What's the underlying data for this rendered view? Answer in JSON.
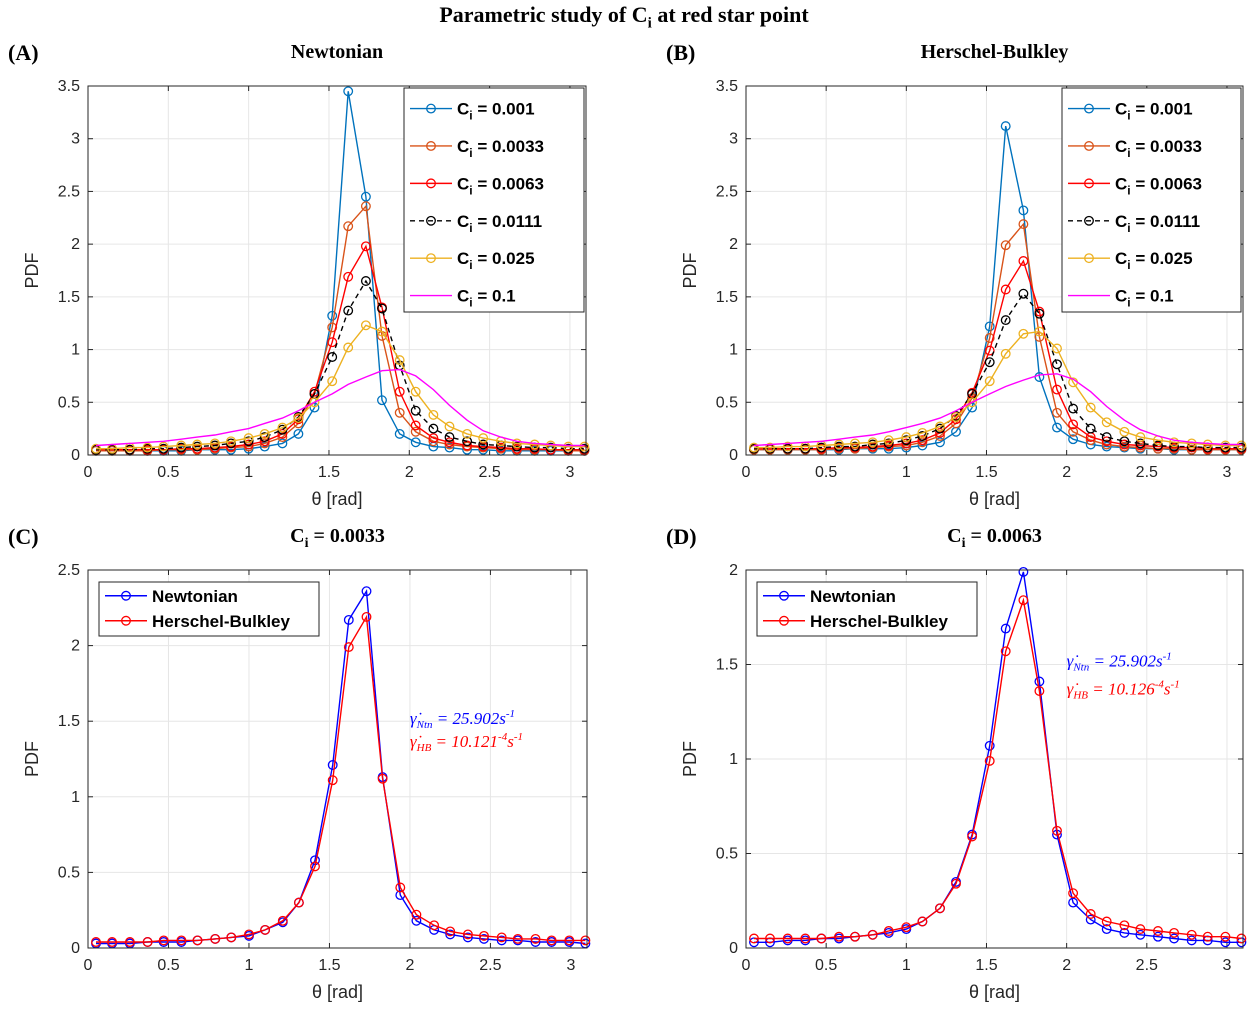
{
  "figure": {
    "title": "Parametric study of C",
    "title_sub": "i",
    "title_tail": " at red star point"
  },
  "chart_data": [
    {
      "type": "line",
      "panel_label": "(A)",
      "title": "Newtonian",
      "xlabel": "θ [rad]",
      "ylabel": "PDF",
      "xlim": [
        0,
        3.1
      ],
      "ylim": [
        0,
        3.5
      ],
      "xticks": [
        "0",
        "0.5",
        "1",
        "1.5",
        "2",
        "2.5",
        "3"
      ],
      "yticks": [
        "0",
        "0.5",
        "1",
        "1.5",
        "2",
        "2.5",
        "3",
        "3.5"
      ],
      "grid": true,
      "legend": "top-right",
      "x": [
        0.05,
        0.15,
        0.26,
        0.37,
        0.47,
        0.58,
        0.68,
        0.79,
        0.89,
        1.0,
        1.1,
        1.21,
        1.31,
        1.41,
        1.52,
        1.62,
        1.73,
        1.83,
        1.94,
        2.04,
        2.15,
        2.25,
        2.36,
        2.46,
        2.57,
        2.67,
        2.78,
        2.88,
        2.99,
        3.09
      ],
      "series": [
        {
          "name": "C_i = 0.001",
          "legend_main": "C",
          "legend_sub": "i",
          "legend_tail": " = 0.001",
          "color": "#0072BD",
          "dash": false,
          "markers": true,
          "values": [
            0.04,
            0.04,
            0.04,
            0.04,
            0.04,
            0.04,
            0.05,
            0.05,
            0.05,
            0.06,
            0.08,
            0.11,
            0.2,
            0.45,
            1.32,
            3.45,
            2.45,
            0.52,
            0.2,
            0.12,
            0.08,
            0.07,
            0.05,
            0.05,
            0.04,
            0.04,
            0.04,
            0.04,
            0.04,
            0.04
          ]
        },
        {
          "name": "C_i = 0.0033",
          "legend_main": "C",
          "legend_sub": "i",
          "legend_tail": " = 0.0033",
          "color": "#D95319",
          "dash": false,
          "markers": true,
          "values": [
            0.04,
            0.04,
            0.04,
            0.04,
            0.05,
            0.05,
            0.05,
            0.06,
            0.07,
            0.08,
            0.11,
            0.17,
            0.3,
            0.58,
            1.21,
            2.17,
            2.36,
            1.13,
            0.4,
            0.22,
            0.13,
            0.1,
            0.08,
            0.07,
            0.06,
            0.05,
            0.05,
            0.05,
            0.04,
            0.04
          ]
        },
        {
          "name": "C_i = 0.0063",
          "legend_main": "C",
          "legend_sub": "i",
          "legend_tail": " = 0.0063",
          "color": "#FF0000",
          "dash": false,
          "markers": true,
          "values": [
            0.05,
            0.05,
            0.05,
            0.05,
            0.05,
            0.06,
            0.06,
            0.07,
            0.08,
            0.1,
            0.13,
            0.2,
            0.34,
            0.6,
            1.07,
            1.69,
            1.98,
            1.4,
            0.6,
            0.28,
            0.16,
            0.12,
            0.09,
            0.08,
            0.07,
            0.06,
            0.06,
            0.05,
            0.05,
            0.05
          ]
        },
        {
          "name": "C_i = 0.0111",
          "legend_main": "C",
          "legend_sub": "i",
          "legend_tail": " = 0.0111",
          "color": "#000000",
          "dash": true,
          "markers": true,
          "values": [
            0.05,
            0.05,
            0.05,
            0.06,
            0.06,
            0.07,
            0.08,
            0.09,
            0.11,
            0.13,
            0.17,
            0.24,
            0.36,
            0.58,
            0.93,
            1.37,
            1.65,
            1.39,
            0.85,
            0.42,
            0.25,
            0.17,
            0.13,
            0.1,
            0.09,
            0.08,
            0.07,
            0.07,
            0.06,
            0.06
          ]
        },
        {
          "name": "C_i = 0.025",
          "legend_main": "C",
          "legend_sub": "i",
          "legend_tail": " = 0.025",
          "color": "#EDB120",
          "dash": false,
          "markers": true,
          "values": [
            0.06,
            0.06,
            0.07,
            0.07,
            0.08,
            0.09,
            0.1,
            0.11,
            0.13,
            0.16,
            0.2,
            0.26,
            0.35,
            0.5,
            0.7,
            1.02,
            1.23,
            1.17,
            0.9,
            0.6,
            0.38,
            0.27,
            0.2,
            0.16,
            0.13,
            0.11,
            0.1,
            0.09,
            0.08,
            0.08
          ]
        },
        {
          "name": "C_i = 0.1",
          "legend_main": "C",
          "legend_sub": "i",
          "legend_tail": " = 0.1",
          "color": "#FF00FF",
          "dash": false,
          "markers": false,
          "values": [
            0.09,
            0.1,
            0.11,
            0.12,
            0.13,
            0.15,
            0.17,
            0.19,
            0.22,
            0.25,
            0.3,
            0.35,
            0.42,
            0.5,
            0.58,
            0.67,
            0.74,
            0.8,
            0.81,
            0.75,
            0.62,
            0.47,
            0.33,
            0.23,
            0.17,
            0.13,
            0.11,
            0.1,
            0.09,
            0.09
          ]
        }
      ]
    },
    {
      "type": "line",
      "panel_label": "(B)",
      "title": "Herschel-Bulkley",
      "xlabel": "θ [rad]",
      "ylabel": "PDF",
      "xlim": [
        0,
        3.1
      ],
      "ylim": [
        0,
        3.5
      ],
      "xticks": [
        "0",
        "0.5",
        "1",
        "1.5",
        "2",
        "2.5",
        "3"
      ],
      "yticks": [
        "0",
        "0.5",
        "1",
        "1.5",
        "2",
        "2.5",
        "3",
        "3.5"
      ],
      "grid": true,
      "legend": "top-right",
      "x": [
        0.05,
        0.15,
        0.26,
        0.37,
        0.47,
        0.58,
        0.68,
        0.79,
        0.89,
        1.0,
        1.1,
        1.21,
        1.31,
        1.41,
        1.52,
        1.62,
        1.73,
        1.83,
        1.94,
        2.04,
        2.15,
        2.25,
        2.36,
        2.46,
        2.57,
        2.67,
        2.78,
        2.88,
        2.99,
        3.09
      ],
      "series": [
        {
          "name": "C_i = 0.001",
          "legend_main": "C",
          "legend_sub": "i",
          "legend_tail": " = 0.001",
          "color": "#0072BD",
          "dash": false,
          "markers": true,
          "values": [
            0.05,
            0.05,
            0.05,
            0.05,
            0.05,
            0.05,
            0.06,
            0.06,
            0.06,
            0.07,
            0.09,
            0.12,
            0.22,
            0.45,
            1.22,
            3.12,
            2.32,
            0.74,
            0.26,
            0.15,
            0.1,
            0.08,
            0.07,
            0.06,
            0.06,
            0.05,
            0.05,
            0.05,
            0.05,
            0.05
          ]
        },
        {
          "name": "C_i = 0.0033",
          "legend_main": "C",
          "legend_sub": "i",
          "legend_tail": " = 0.0033",
          "color": "#D95319",
          "dash": false,
          "markers": true,
          "values": [
            0.05,
            0.05,
            0.05,
            0.05,
            0.05,
            0.06,
            0.06,
            0.07,
            0.08,
            0.09,
            0.12,
            0.18,
            0.3,
            0.54,
            1.11,
            1.99,
            2.19,
            1.12,
            0.4,
            0.22,
            0.14,
            0.1,
            0.08,
            0.07,
            0.06,
            0.06,
            0.05,
            0.05,
            0.05,
            0.05
          ]
        },
        {
          "name": "C_i = 0.0063",
          "legend_main": "C",
          "legend_sub": "i",
          "legend_tail": " = 0.0063",
          "color": "#FF0000",
          "dash": false,
          "markers": true,
          "values": [
            0.06,
            0.06,
            0.06,
            0.06,
            0.06,
            0.07,
            0.07,
            0.08,
            0.09,
            0.11,
            0.14,
            0.21,
            0.34,
            0.59,
            0.99,
            1.57,
            1.84,
            1.36,
            0.62,
            0.29,
            0.17,
            0.13,
            0.1,
            0.09,
            0.08,
            0.07,
            0.07,
            0.06,
            0.06,
            0.06
          ]
        },
        {
          "name": "C_i = 0.0111",
          "legend_main": "C",
          "legend_sub": "i",
          "legend_tail": " = 0.0111",
          "color": "#000000",
          "dash": true,
          "markers": true,
          "values": [
            0.06,
            0.06,
            0.06,
            0.06,
            0.07,
            0.08,
            0.08,
            0.1,
            0.11,
            0.14,
            0.18,
            0.25,
            0.37,
            0.58,
            0.88,
            1.28,
            1.53,
            1.34,
            0.86,
            0.44,
            0.25,
            0.17,
            0.13,
            0.11,
            0.09,
            0.08,
            0.08,
            0.07,
            0.07,
            0.07
          ]
        },
        {
          "name": "C_i = 0.025",
          "legend_main": "C",
          "legend_sub": "i",
          "legend_tail": " = 0.025",
          "color": "#EDB120",
          "dash": false,
          "markers": true,
          "values": [
            0.07,
            0.07,
            0.08,
            0.08,
            0.09,
            0.1,
            0.11,
            0.12,
            0.14,
            0.17,
            0.21,
            0.27,
            0.36,
            0.5,
            0.7,
            0.96,
            1.15,
            1.17,
            1.01,
            0.69,
            0.45,
            0.31,
            0.22,
            0.17,
            0.14,
            0.12,
            0.11,
            0.1,
            0.09,
            0.09
          ]
        },
        {
          "name": "C_i = 0.1",
          "legend_main": "C",
          "legend_sub": "i",
          "legend_tail": " = 0.1",
          "color": "#FF00FF",
          "dash": false,
          "markers": false,
          "values": [
            0.09,
            0.1,
            0.11,
            0.12,
            0.13,
            0.15,
            0.17,
            0.19,
            0.22,
            0.26,
            0.3,
            0.35,
            0.42,
            0.5,
            0.58,
            0.65,
            0.71,
            0.76,
            0.77,
            0.72,
            0.6,
            0.46,
            0.33,
            0.24,
            0.18,
            0.14,
            0.12,
            0.11,
            0.1,
            0.1
          ]
        }
      ]
    },
    {
      "type": "line",
      "panel_label": "(C)",
      "title": "C",
      "title_sub": "i",
      "title_tail": " = 0.0033",
      "xlabel": "θ [rad]",
      "ylabel": "PDF",
      "xlim": [
        0,
        3.1
      ],
      "ylim": [
        0,
        2.5
      ],
      "xticks": [
        "0",
        "0.5",
        "1",
        "1.5",
        "2",
        "2.5",
        "3"
      ],
      "yticks": [
        "0",
        "0.5",
        "1",
        "1.5",
        "2",
        "2.5"
      ],
      "grid": true,
      "legend": "top-left",
      "annotations": [
        {
          "main": "γ̇",
          "sub": "Ntn",
          "tail": " = 25.902s",
          "sup": "-1",
          "color": "#0000FF",
          "x": 2.0,
          "y": 1.48
        },
        {
          "main": "γ̇",
          "sub": "HB",
          "tail": " = 10.121",
          "sup": "-4",
          "tail2": "s",
          "sup2": "-1",
          "color": "#FF0000",
          "x": 2.0,
          "y": 1.33
        }
      ],
      "x": [
        0.05,
        0.15,
        0.26,
        0.37,
        0.47,
        0.58,
        0.68,
        0.79,
        0.89,
        1.0,
        1.1,
        1.21,
        1.31,
        1.41,
        1.52,
        1.62,
        1.73,
        1.83,
        1.94,
        2.04,
        2.15,
        2.25,
        2.36,
        2.46,
        2.57,
        2.67,
        2.78,
        2.88,
        2.99,
        3.09
      ],
      "series": [
        {
          "name": "Newtonian",
          "legend_main": "Newtonian",
          "legend_sub": "",
          "legend_tail": "",
          "color": "#0000FF",
          "dash": false,
          "markers": true,
          "values": [
            0.03,
            0.03,
            0.03,
            0.04,
            0.04,
            0.04,
            0.05,
            0.06,
            0.07,
            0.08,
            0.12,
            0.17,
            0.3,
            0.58,
            1.21,
            2.17,
            2.36,
            1.13,
            0.35,
            0.18,
            0.12,
            0.09,
            0.07,
            0.06,
            0.05,
            0.05,
            0.04,
            0.04,
            0.04,
            0.03
          ]
        },
        {
          "name": "Herschel-Bulkley",
          "legend_main": "Herschel-Bulkley",
          "legend_sub": "",
          "legend_tail": "",
          "color": "#FF0000",
          "dash": false,
          "markers": true,
          "values": [
            0.04,
            0.04,
            0.04,
            0.04,
            0.05,
            0.05,
            0.05,
            0.06,
            0.07,
            0.09,
            0.12,
            0.18,
            0.3,
            0.54,
            1.11,
            1.99,
            2.19,
            1.12,
            0.4,
            0.22,
            0.15,
            0.11,
            0.09,
            0.08,
            0.07,
            0.06,
            0.06,
            0.05,
            0.05,
            0.05
          ]
        }
      ]
    },
    {
      "type": "line",
      "panel_label": "(D)",
      "title": "C",
      "title_sub": "i",
      "title_tail": " = 0.0063",
      "xlabel": "θ [rad]",
      "ylabel": "PDF",
      "xlim": [
        0,
        3.1
      ],
      "ylim": [
        0,
        2
      ],
      "xticks": [
        "0",
        "0.5",
        "1",
        "1.5",
        "2",
        "2.5",
        "3"
      ],
      "yticks": [
        "0",
        "0.5",
        "1",
        "1.5",
        "2"
      ],
      "grid": true,
      "legend": "top-left",
      "annotations": [
        {
          "main": "γ̇",
          "sub": "Ntn",
          "tail": " = 25.902s",
          "sup": "-1",
          "color": "#0000FF",
          "x": 2.0,
          "y": 1.49
        },
        {
          "main": "γ̇",
          "sub": "HB",
          "tail": " = 10.126",
          "sup": "-4",
          "tail2": "s",
          "sup2": "-1",
          "color": "#FF0000",
          "x": 2.0,
          "y": 1.34
        }
      ],
      "x": [
        0.05,
        0.15,
        0.26,
        0.37,
        0.47,
        0.58,
        0.68,
        0.79,
        0.89,
        1.0,
        1.1,
        1.21,
        1.31,
        1.41,
        1.52,
        1.62,
        1.73,
        1.83,
        1.94,
        2.04,
        2.15,
        2.25,
        2.36,
        2.46,
        2.57,
        2.67,
        2.78,
        2.88,
        2.99,
        3.09
      ],
      "series": [
        {
          "name": "Newtonian",
          "legend_main": "Newtonian",
          "legend_sub": "",
          "legend_tail": "",
          "color": "#0000FF",
          "dash": false,
          "markers": true,
          "values": [
            0.03,
            0.03,
            0.04,
            0.04,
            0.05,
            0.05,
            0.06,
            0.07,
            0.08,
            0.1,
            0.14,
            0.21,
            0.35,
            0.6,
            1.07,
            1.69,
            1.99,
            1.41,
            0.6,
            0.24,
            0.15,
            0.1,
            0.08,
            0.07,
            0.06,
            0.05,
            0.04,
            0.04,
            0.03,
            0.03
          ]
        },
        {
          "name": "Herschel-Bulkley",
          "legend_main": "Herschel-Bulkley",
          "legend_sub": "",
          "legend_tail": "",
          "color": "#FF0000",
          "dash": false,
          "markers": true,
          "values": [
            0.05,
            0.05,
            0.05,
            0.05,
            0.05,
            0.06,
            0.06,
            0.07,
            0.09,
            0.11,
            0.14,
            0.21,
            0.34,
            0.59,
            0.99,
            1.57,
            1.84,
            1.36,
            0.62,
            0.29,
            0.18,
            0.14,
            0.12,
            0.1,
            0.09,
            0.08,
            0.07,
            0.06,
            0.06,
            0.05
          ]
        }
      ]
    }
  ]
}
